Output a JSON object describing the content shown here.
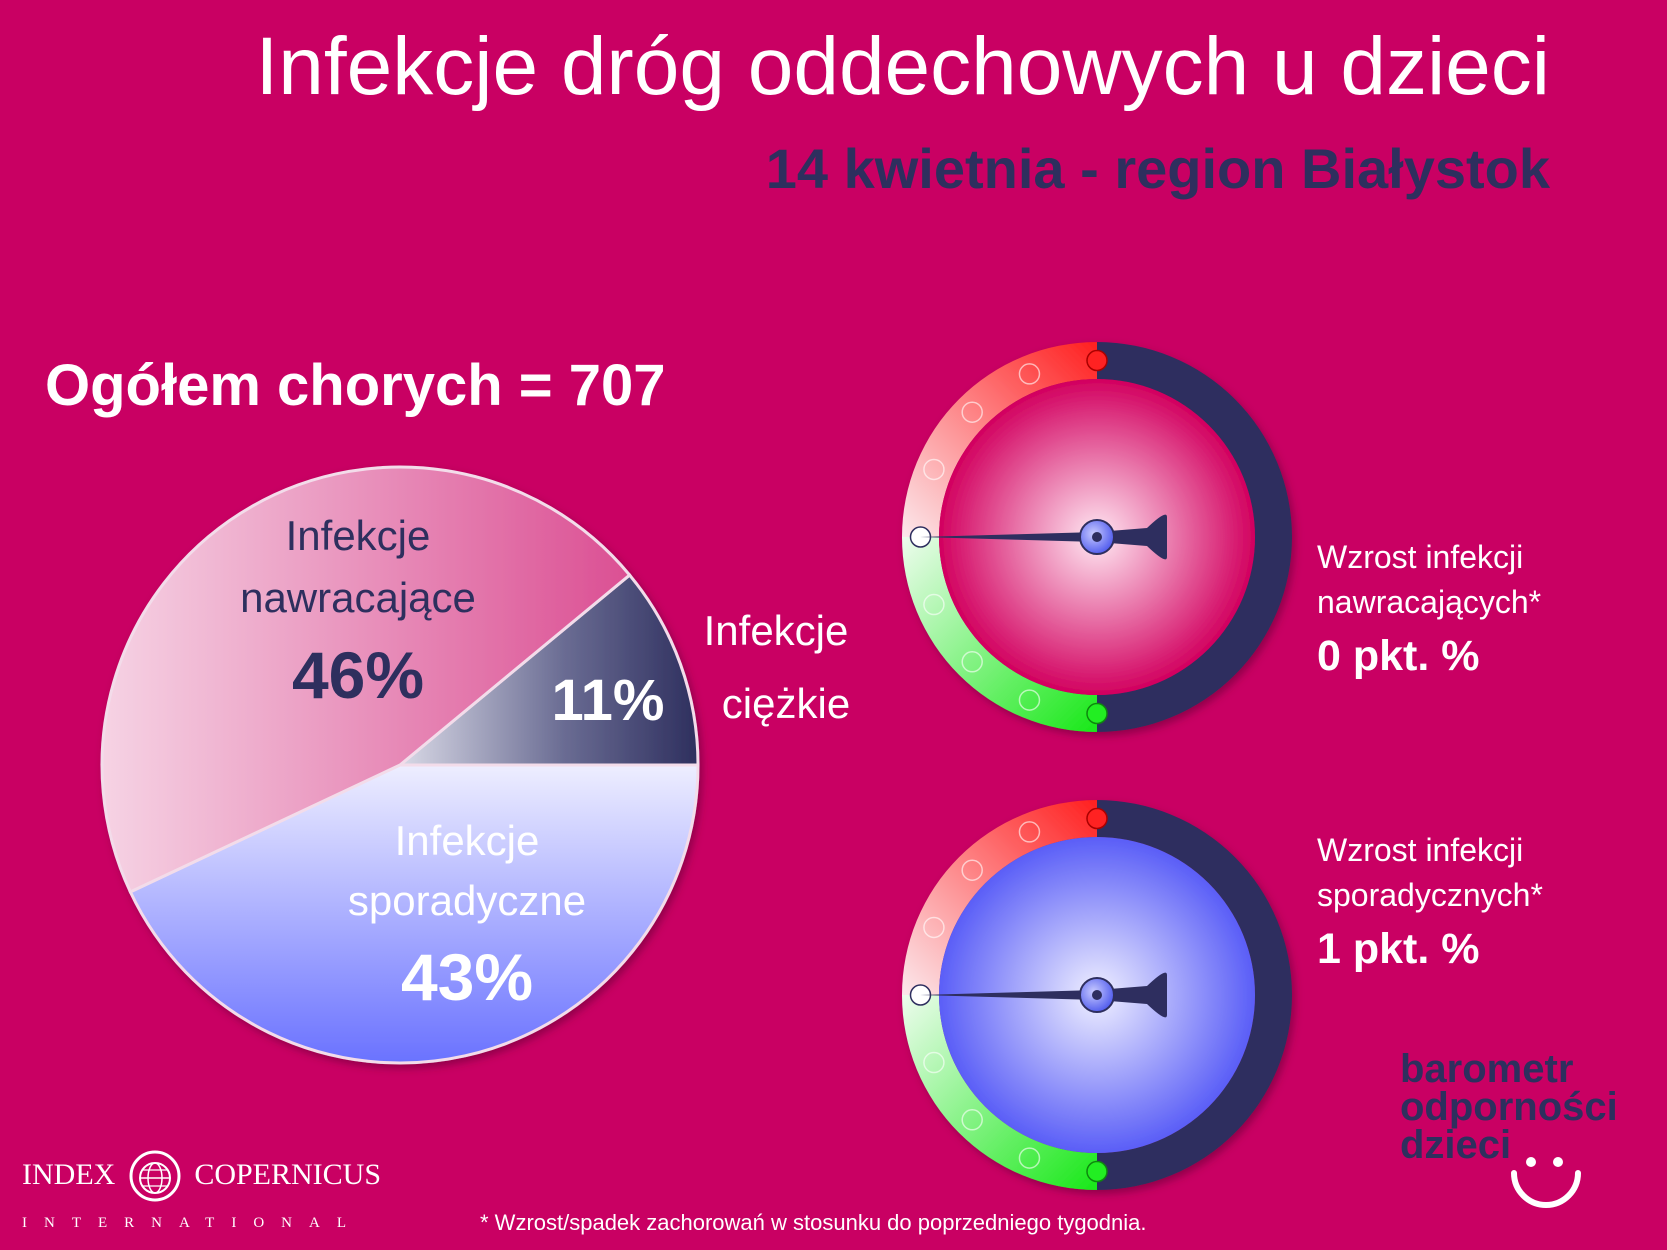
{
  "title": "Infekcje dróg oddechowych u dzieci",
  "subtitle": "14 kwietnia - region Białystok",
  "total_label": "Ogółem chorych = 707",
  "colors": {
    "background": "#c90063",
    "dark": "#2e2f5e",
    "pink": "#e06aa6",
    "lavender": "#8d93ff",
    "gauge_red": "#ff2a2a",
    "gauge_green": "#22ee22"
  },
  "chart_data": {
    "type": "pie",
    "total": 707,
    "slices": [
      {
        "label_line1": "Infekcje",
        "label_line2": "nawracające",
        "value": 46,
        "display": "46%"
      },
      {
        "label_line1": "Infekcje",
        "label_line2": "ciężkie",
        "value": 11,
        "display": "11%"
      },
      {
        "label_line1": "Infekcje",
        "label_line2": "sporadyczne",
        "value": 43,
        "display": "43%"
      }
    ]
  },
  "gauges": [
    {
      "label_line1": "Wzrost infekcji",
      "label_line2": "nawracających*",
      "value_text": "0 pkt. %",
      "value": 0,
      "face": "pink"
    },
    {
      "label_line1": "Wzrost infekcji",
      "label_line2": "sporadycznych*",
      "value_text": "1 pkt. %",
      "value": 1,
      "face": "blue"
    }
  ],
  "footnote": "* Wzrost/spadek zachorowań w stosunku do poprzedniego tygodnia.",
  "logo": {
    "name_left": "INDEX",
    "name_right": "COPERNICUS",
    "subline": "INTERNATIONAL"
  },
  "brand": {
    "line1": "barometr",
    "line2": "odporności",
    "line3": "dzieci"
  }
}
